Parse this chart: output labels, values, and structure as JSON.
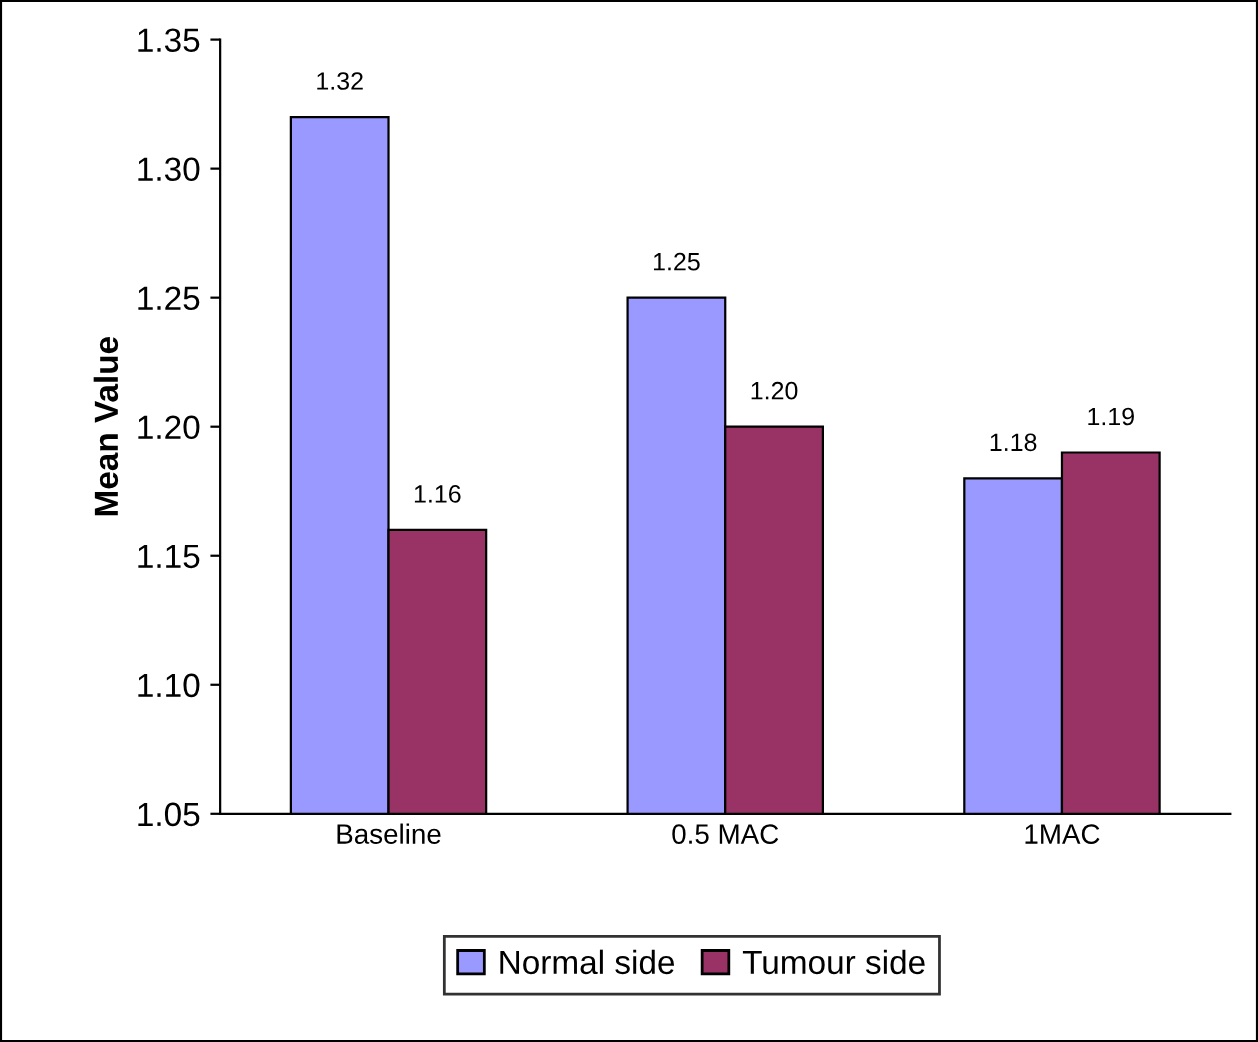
{
  "chart_data": {
    "type": "bar",
    "ylabel": "Mean Value",
    "categories": [
      "Baseline",
      "0.5 MAC",
      "1MAC"
    ],
    "series": [
      {
        "name": "Normal side",
        "color": "#9999ff",
        "values": [
          1.32,
          1.25,
          1.18
        ],
        "value_labels": [
          "1.32",
          "1.25",
          "1.18"
        ]
      },
      {
        "name": "Tumour side",
        "color": "#993366",
        "values": [
          1.16,
          1.2,
          1.19
        ],
        "value_labels": [
          "1.16",
          "1.20",
          "1.19"
        ]
      }
    ],
    "ylim": [
      1.05,
      1.35
    ],
    "yticks": [
      {
        "value": 1.05,
        "label": "1.05"
      },
      {
        "value": 1.1,
        "label": "1.10"
      },
      {
        "value": 1.15,
        "label": "1.15"
      },
      {
        "value": 1.2,
        "label": "1.20"
      },
      {
        "value": 1.25,
        "label": "1.25"
      },
      {
        "value": 1.3,
        "label": "1.30"
      },
      {
        "value": 1.35,
        "label": "1.35"
      }
    ],
    "grid": false,
    "legend": "bottom"
  }
}
